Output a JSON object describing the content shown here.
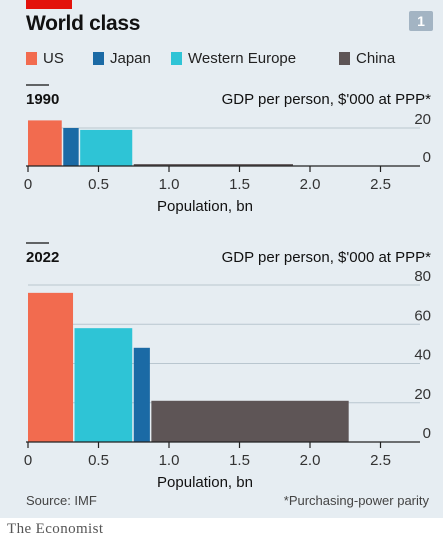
{
  "header": {
    "title": "World class",
    "chart_number": "1",
    "accent_color": "#e3120b",
    "number_badge_color": "#a3b4c3"
  },
  "legend": [
    {
      "name": "US",
      "color": "#f26b4f"
    },
    {
      "name": "Japan",
      "color": "#1b6aa5"
    },
    {
      "name": "Western Europe",
      "color": "#2ec4d6"
    },
    {
      "name": "China",
      "color": "#5e5556"
    }
  ],
  "chart_data": [
    {
      "type": "bar",
      "title": "1990",
      "ylabel": "GDP per person, $'000 at PPP*",
      "xlabel": "Population, bn",
      "xlim": [
        0,
        2.7
      ],
      "ylim": [
        0,
        20
      ],
      "x_ticks": [
        "0",
        "0.5",
        "1.0",
        "1.5",
        "2.0",
        "2.5"
      ],
      "x_tick_values": [
        0,
        0.5,
        1.0,
        1.5,
        2.0,
        2.5
      ],
      "y_ticks": [
        "20",
        "0"
      ],
      "y_tick_values": [
        20,
        0
      ],
      "series": [
        {
          "name": "US",
          "population": 0.25,
          "gdp_per_person": 24
        },
        {
          "name": "Japan",
          "population": 0.12,
          "gdp_per_person": 20
        },
        {
          "name": "Western Europe",
          "population": 0.38,
          "gdp_per_person": 19
        },
        {
          "name": "China",
          "population": 1.14,
          "gdp_per_person": 1
        }
      ]
    },
    {
      "type": "bar",
      "title": "2022",
      "ylabel": "GDP per person, $'000 at PPP*",
      "xlabel": "Population, bn",
      "xlim": [
        0,
        2.7
      ],
      "ylim": [
        0,
        80
      ],
      "x_ticks": [
        "0",
        "0.5",
        "1.0",
        "1.5",
        "2.0",
        "2.5"
      ],
      "x_tick_values": [
        0,
        0.5,
        1.0,
        1.5,
        2.0,
        2.5
      ],
      "y_ticks": [
        "80",
        "60",
        "40",
        "20",
        "0"
      ],
      "y_tick_values": [
        80,
        60,
        40,
        20,
        0
      ],
      "series": [
        {
          "name": "US",
          "population": 0.33,
          "gdp_per_person": 76
        },
        {
          "name": "Western Europe",
          "population": 0.42,
          "gdp_per_person": 58
        },
        {
          "name": "Japan",
          "population": 0.125,
          "gdp_per_person": 48
        },
        {
          "name": "China",
          "population": 1.41,
          "gdp_per_person": 21
        }
      ]
    }
  ],
  "footer": {
    "source": "Source: IMF",
    "footnote": "*Purchasing-power parity",
    "brand": "The Economist"
  }
}
